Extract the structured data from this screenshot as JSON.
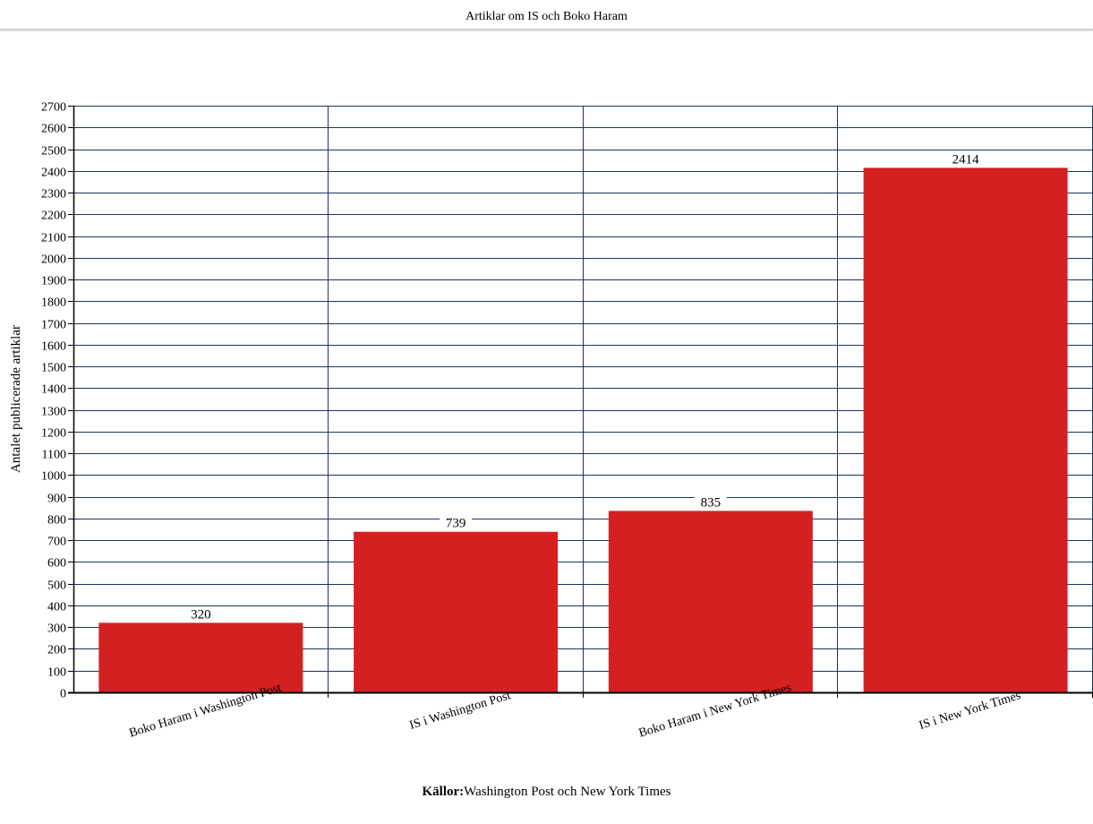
{
  "chart_data": {
    "type": "bar",
    "title": "Artiklar om IS och Boko Haram",
    "ylabel": "Antalet publicerade artiklar",
    "xlabel": "",
    "categories": [
      "Boko Haram i Washington Post",
      "IS i Washington Post",
      "Boko Haram i New York Times",
      "IS i New York Times"
    ],
    "values": [
      320,
      739,
      835,
      2414
    ],
    "ylim": [
      0,
      2700
    ],
    "ytick_step": 100,
    "grid": true,
    "legend": "none",
    "bar_color": "#d42020",
    "grid_color": "#17375e",
    "source_label": "Källor:",
    "source_text": "Washington Post och New York Times"
  }
}
